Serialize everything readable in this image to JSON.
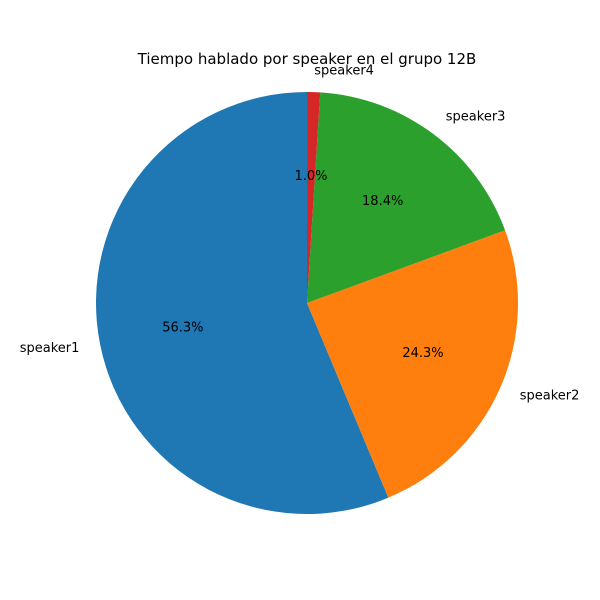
{
  "chart_data": {
    "type": "pie",
    "title": "Tiempo hablado por speaker en el grupo 12B",
    "start_angle_deg": 90,
    "direction": "counterclockwise",
    "slices": [
      {
        "label": "speaker1",
        "percent": 56.3,
        "pct_label": "56.3%",
        "color": "#1f77b4"
      },
      {
        "label": "speaker2",
        "percent": 24.3,
        "pct_label": "24.3%",
        "color": "#ff7f0e"
      },
      {
        "label": "speaker3",
        "percent": 18.4,
        "pct_label": "18.4%",
        "color": "#2ca02c"
      },
      {
        "label": "speaker4",
        "percent": 1.0,
        "pct_label": "1.0%",
        "color": "#d62728"
      }
    ]
  }
}
